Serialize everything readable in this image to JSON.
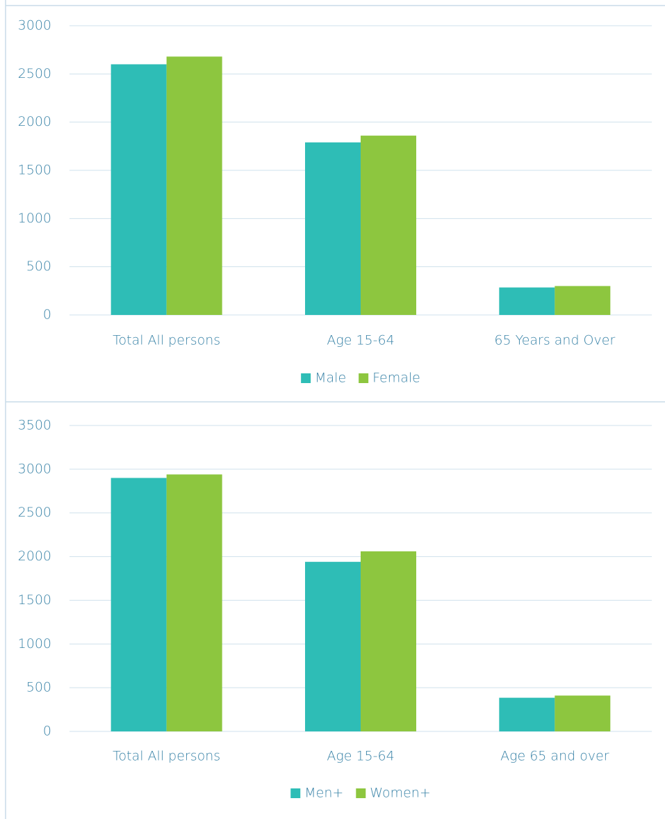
{
  "chart_data": [
    {
      "type": "bar",
      "categories": [
        "Total All persons",
        "Age 15-64",
        "65 Years and Over"
      ],
      "series": [
        {
          "name": "Male",
          "color": "#2ebdb6",
          "values": [
            2600,
            1790,
            285
          ]
        },
        {
          "name": "Female",
          "color": "#8dc63f",
          "values": [
            2680,
            1860,
            300
          ]
        }
      ],
      "ylim": [
        0,
        3000
      ],
      "yticks": [
        0,
        500,
        1000,
        1500,
        2000,
        2500,
        3000
      ],
      "grid": true,
      "legend": "bottom"
    },
    {
      "type": "bar",
      "categories": [
        "Total All persons",
        "Age 15-64",
        "Age 65 and over"
      ],
      "series": [
        {
          "name": "Men+",
          "color": "#2ebdb6",
          "values": [
            2900,
            1940,
            385
          ]
        },
        {
          "name": "Women+",
          "color": "#8dc63f",
          "values": [
            2940,
            2060,
            410
          ]
        }
      ],
      "ylim": [
        0,
        3500
      ],
      "yticks": [
        0,
        500,
        1000,
        1500,
        2000,
        2500,
        3000,
        3500
      ],
      "grid": true,
      "legend": "bottom"
    }
  ]
}
